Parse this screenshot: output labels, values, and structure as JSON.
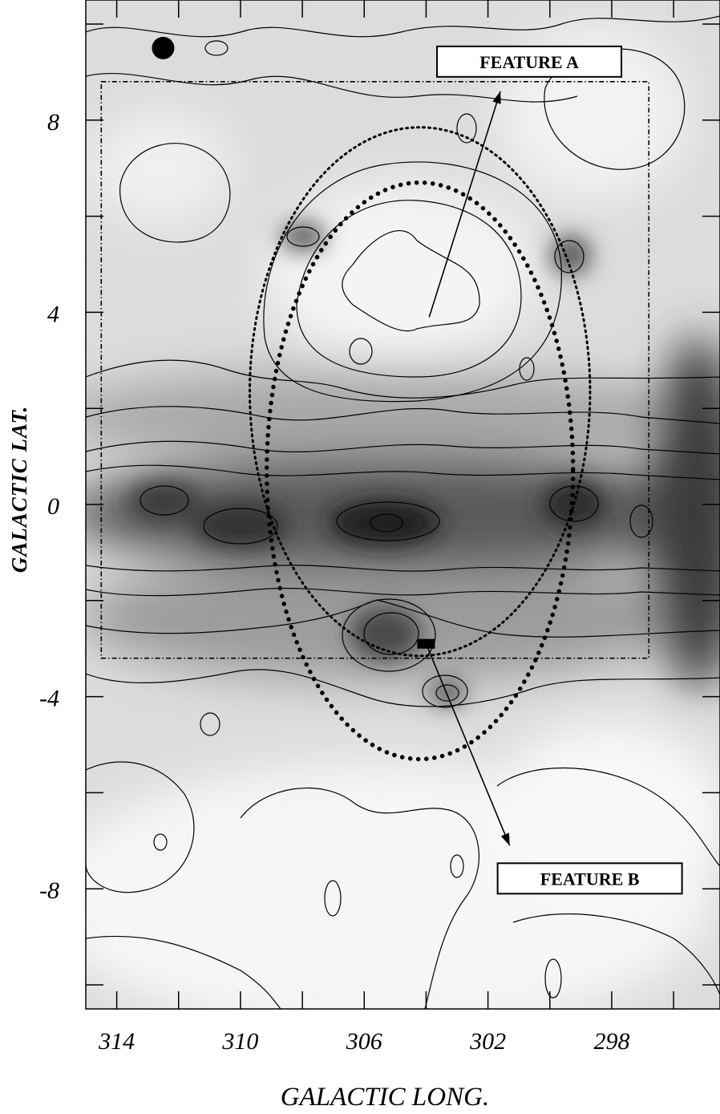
{
  "chart_data": {
    "type": "heatmap",
    "title": "",
    "xlabel": "GALACTIC LONG.",
    "ylabel": "GALACTIC LAT.",
    "xlim": [
      315,
      294.5
    ],
    "ylim": [
      -10.5,
      10.5
    ],
    "x_ticks": [
      314,
      310,
      306,
      302,
      298
    ],
    "y_ticks": [
      8,
      4,
      0,
      -4,
      -8
    ],
    "x_tick_labels": [
      "314",
      "310",
      "306",
      "302",
      "298"
    ],
    "y_tick_labels": [
      "8",
      "4",
      "0",
      "-4",
      "-8"
    ],
    "grayscale": "darker = higher intensity, contoured",
    "grid": false,
    "annotations": [
      {
        "text": "FEATURE A",
        "arrow_from": [
          303.9,
          3.9
        ],
        "arrow_to": [
          301.6,
          8.6
        ]
      },
      {
        "text": "FEATURE B",
        "arrow_from": [
          304.0,
          -2.9
        ],
        "arrow_to": [
          301.3,
          -7.1
        ]
      }
    ],
    "dashed_box": {
      "x": [
        314.5,
        296.8
      ],
      "y": [
        -3.2,
        8.8
      ]
    },
    "dotted_circle_small": {
      "center": [
        304.2,
        2.35
      ],
      "radius": 5.5
    },
    "dotted_circle_large": {
      "center": [
        304.2,
        0.7
      ],
      "radius_x": 4.95,
      "radius_y": 6.0
    },
    "markers": [
      {
        "symbol": "filled-circle",
        "at": [
          312.5,
          9.5
        ]
      },
      {
        "symbol": "filled-rectangle",
        "at": [
          304.0,
          -2.9
        ]
      }
    ]
  }
}
